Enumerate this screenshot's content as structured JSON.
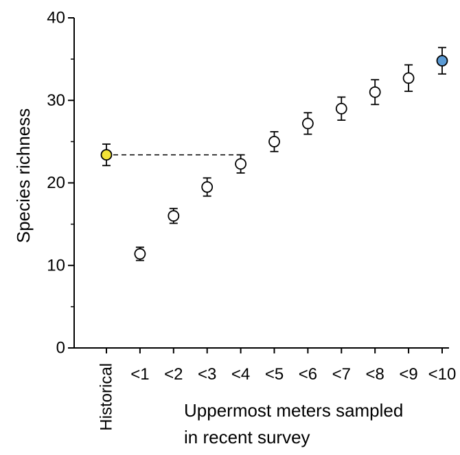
{
  "chart_data": {
    "type": "scatter",
    "ylabel": "Species richness",
    "xlabel_lines": [
      "Uppermost meters sampled",
      "in recent survey"
    ],
    "ylim": [
      0,
      40
    ],
    "yticks_major": [
      0,
      10,
      20,
      30,
      40
    ],
    "yticks_minor": [
      5,
      15,
      25,
      35
    ],
    "categories": [
      "Historical",
      "<1",
      "<2",
      "<3",
      "<4",
      "<5",
      "<6",
      "<7",
      "<8",
      "<9",
      "<10"
    ],
    "values": [
      23.4,
      11.4,
      16.0,
      19.5,
      22.3,
      25.0,
      27.2,
      29.0,
      31.0,
      32.7,
      34.8
    ],
    "error": [
      1.3,
      0.8,
      0.9,
      1.1,
      1.1,
      1.2,
      1.3,
      1.4,
      1.5,
      1.6,
      1.6
    ],
    "point_fill": [
      "#f2e337",
      "#ffffff",
      "#ffffff",
      "#ffffff",
      "#ffffff",
      "#ffffff",
      "#ffffff",
      "#ffffff",
      "#ffffff",
      "#ffffff",
      "#5b9bd5"
    ],
    "reference_line": {
      "from_category": "Historical",
      "to_category": "<4",
      "y": 23.4,
      "style": "dashed"
    },
    "grid": false
  }
}
